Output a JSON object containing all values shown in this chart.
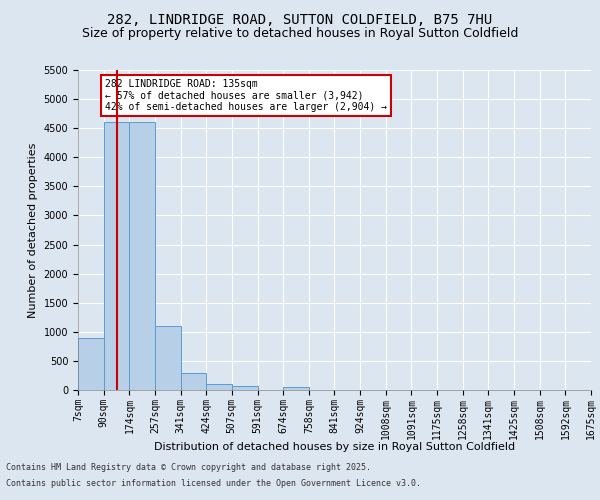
{
  "title1": "282, LINDRIDGE ROAD, SUTTON COLDFIELD, B75 7HU",
  "title2": "Size of property relative to detached houses in Royal Sutton Coldfield",
  "xlabel": "Distribution of detached houses by size in Royal Sutton Coldfield",
  "ylabel": "Number of detached properties",
  "annotation_title": "282 LINDRIDGE ROAD: 135sqm",
  "annotation_line1": "← 57% of detached houses are smaller (3,942)",
  "annotation_line2": "42% of semi-detached houses are larger (2,904) →",
  "footer1": "Contains HM Land Registry data © Crown copyright and database right 2025.",
  "footer2": "Contains public sector information licensed under the Open Government Licence v3.0.",
  "bin_edges": [
    7,
    90,
    174,
    257,
    341,
    424,
    507,
    591,
    674,
    758,
    841,
    924,
    1008,
    1091,
    1175,
    1258,
    1341,
    1425,
    1508,
    1592,
    1675
  ],
  "bar_heights": [
    900,
    4600,
    4600,
    1100,
    300,
    100,
    75,
    0,
    50,
    0,
    0,
    0,
    0,
    0,
    0,
    0,
    0,
    0,
    0,
    0
  ],
  "bar_facecolor": "#b8cfe8",
  "bar_edgecolor": "#5b9bd5",
  "vline_x": 135,
  "vline_color": "#cc0000",
  "ylim": [
    0,
    5500
  ],
  "yticks": [
    0,
    500,
    1000,
    1500,
    2000,
    2500,
    3000,
    3500,
    4000,
    4500,
    5000,
    5500
  ],
  "background_color": "#dce6f0",
  "plot_bg_color": "#dce6f0",
  "grid_color": "#ffffff",
  "title_fontsize": 10,
  "subtitle_fontsize": 9,
  "axis_label_fontsize": 8,
  "tick_fontsize": 7,
  "annotation_box_color": "#cc0000",
  "annotation_text_color": "#000000"
}
